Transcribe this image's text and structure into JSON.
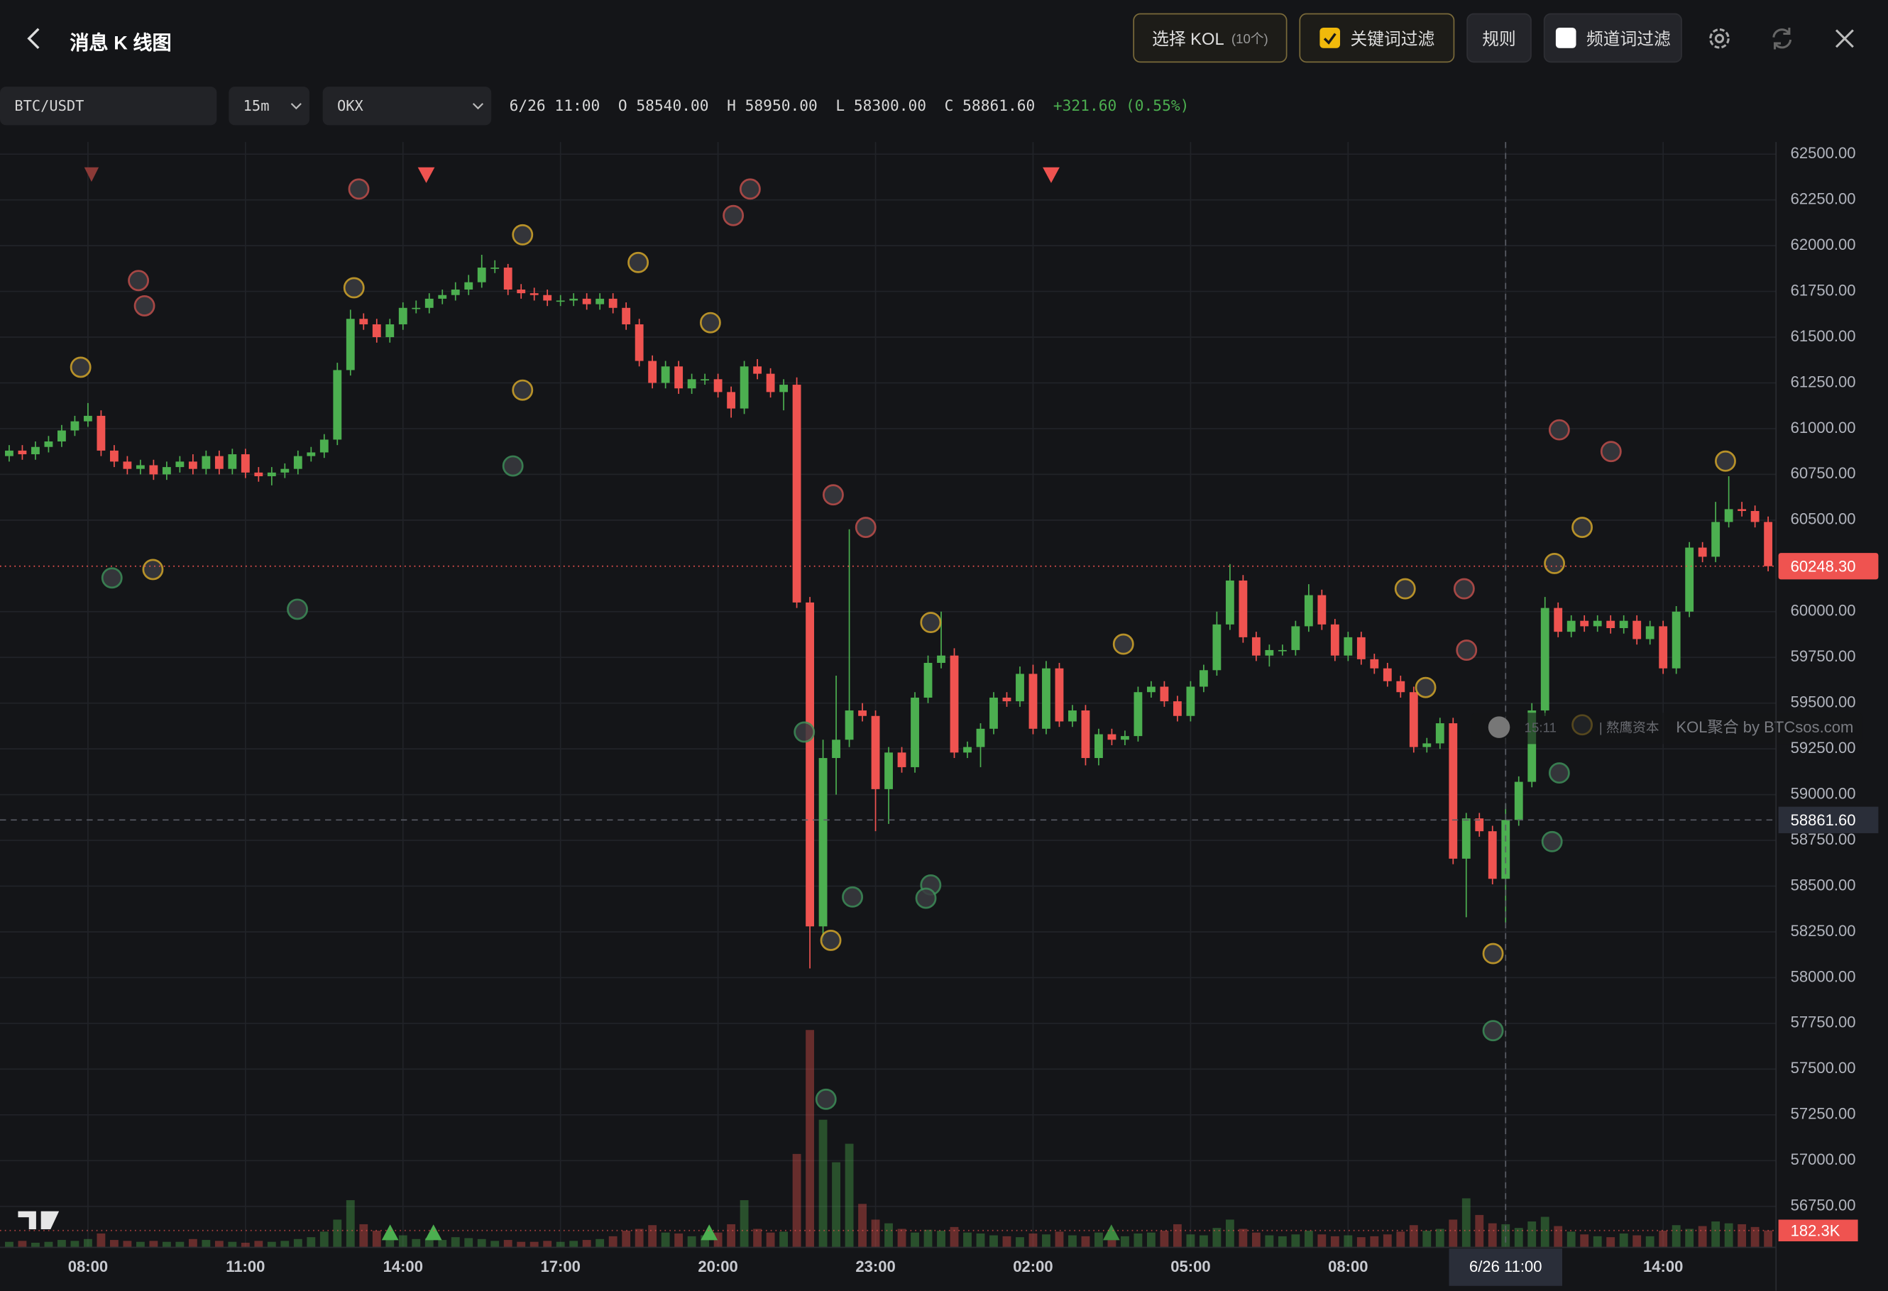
{
  "header": {
    "title": "消息 K 线图",
    "kol_button": "选择 KOL",
    "kol_count": "(10个)",
    "keyword_filter": "关键词过滤",
    "keyword_filter_checked": true,
    "rules": "规则",
    "channel_filter": "频道词过滤",
    "channel_filter_checked": false
  },
  "toolbar": {
    "symbol": "BTC/USDT",
    "interval": "15m",
    "exchange": "OKX",
    "time": "6/26 11:00",
    "open_label": "O",
    "open": "58540.00",
    "high_label": "H",
    "high": "58950.00",
    "low_label": "L",
    "low": "58300.00",
    "close_label": "C",
    "close": "58861.60",
    "change": "+321.60 (0.55%)"
  },
  "watermark": {
    "time": "15:11",
    "source": "| 熬鹰资本",
    "brand": "KOL聚合 by BTCsos.com"
  },
  "chart_data": {
    "type": "candlestick",
    "up_color": "#4caf50",
    "down_color": "#ef5350",
    "grid": true,
    "open": [
      60850,
      60880,
      60860,
      60900,
      60930,
      60990,
      61040,
      61070,
      60880,
      60820,
      60780,
      60800,
      60750,
      60790,
      60820,
      60780,
      60850,
      60780,
      60860,
      60760,
      60740,
      60760,
      60780,
      60850,
      60870,
      60940,
      61320,
      61600,
      61570,
      61500,
      61570,
      61660,
      61660,
      61710,
      61730,
      61760,
      61800,
      61880,
      61880,
      61760,
      61740,
      61730,
      61700,
      61700,
      61710,
      61680,
      61710,
      61660,
      61570,
      61370,
      61250,
      61340,
      61220,
      61270,
      61270,
      61200,
      61110,
      61340,
      61300,
      61200,
      61240,
      60050,
      58280,
      59200,
      59300,
      59460,
      59430,
      59030,
      59230,
      59150,
      59530,
      59720,
      59760,
      59230,
      59260,
      59360,
      59530,
      59510,
      59660,
      59360,
      59690,
      59400,
      59460,
      59200,
      59330,
      59300,
      59320,
      59560,
      59590,
      59510,
      59430,
      59590,
      59680,
      59930,
      60170,
      59860,
      59760,
      59790,
      59790,
      59920,
      60090,
      59930,
      59760,
      59860,
      59740,
      59690,
      59620,
      59560,
      59260,
      59280,
      59390,
      58650,
      58870,
      58800,
      58540,
      58861.6,
      59070,
      59460,
      60020,
      59890,
      59950,
      59920,
      59950,
      59910,
      59950,
      59850,
      59920,
      59690,
      60000,
      60350,
      60300,
      60490,
      60560,
      60550,
      60490
    ],
    "high": [
      60910,
      60910,
      60930,
      60960,
      61020,
      61070,
      61140,
      61100,
      60910,
      60850,
      60830,
      60830,
      60820,
      60850,
      60860,
      60880,
      60880,
      60890,
      60890,
      60790,
      60790,
      60810,
      60880,
      60900,
      60970,
      61360,
      61650,
      61630,
      61600,
      61600,
      61690,
      61700,
      61740,
      61760,
      61800,
      61840,
      61950,
      61920,
      61900,
      61790,
      61770,
      61760,
      61730,
      61740,
      61740,
      61740,
      61740,
      61690,
      61600,
      61400,
      61370,
      61370,
      61300,
      61300,
      61300,
      61230,
      61370,
      61380,
      61330,
      61270,
      61280,
      60080,
      59300,
      59650,
      60450,
      59500,
      59460,
      59260,
      59260,
      59560,
      59760,
      60000,
      59800,
      59290,
      59390,
      59560,
      59560,
      59700,
      59710,
      59730,
      59720,
      59490,
      59490,
      59360,
      59360,
      59350,
      59590,
      59620,
      59620,
      59540,
      59620,
      59710,
      60000,
      60260,
      60200,
      59890,
      59820,
      59820,
      59950,
      60150,
      60120,
      59960,
      59890,
      59890,
      59770,
      59720,
      59650,
      59590,
      59310,
      59420,
      59420,
      58900,
      58900,
      58830,
      58950,
      59100,
      59500,
      60080,
      60050,
      59980,
      59980,
      59980,
      59980,
      59980,
      59980,
      59950,
      59950,
      60030,
      60380,
      60380,
      60600,
      60740,
      60600,
      60580,
      60520
    ],
    "low": [
      60820,
      60830,
      60830,
      60870,
      60900,
      60960,
      61010,
      60850,
      60790,
      60750,
      60750,
      60720,
      60720,
      60760,
      60750,
      60750,
      60750,
      60750,
      60730,
      60710,
      60690,
      60730,
      60750,
      60820,
      60840,
      60910,
      61290,
      61540,
      61470,
      61470,
      61540,
      61630,
      61630,
      61680,
      61700,
      61730,
      61770,
      61850,
      61730,
      61710,
      61700,
      61670,
      61670,
      61670,
      61650,
      61650,
      61630,
      61540,
      61340,
      61220,
      61220,
      61190,
      61190,
      61240,
      61170,
      61060,
      61080,
      61270,
      61170,
      61100,
      60020,
      58050,
      58200,
      59000,
      59260,
      59400,
      58800,
      58840,
      59120,
      59120,
      59500,
      59690,
      59200,
      59200,
      59150,
      59330,
      59480,
      59480,
      59330,
      59330,
      59370,
      59370,
      59160,
      59160,
      59270,
      59270,
      59290,
      59530,
      59480,
      59400,
      59400,
      59560,
      59650,
      59900,
      59830,
      59730,
      59700,
      59760,
      59760,
      59890,
      59900,
      59730,
      59730,
      59710,
      59660,
      59590,
      59530,
      59230,
      59230,
      59250,
      58620,
      58330,
      58770,
      58510,
      58300,
      58830,
      59040,
      59430,
      59860,
      59860,
      59890,
      59890,
      59880,
      59880,
      59820,
      59820,
      59660,
      59660,
      59970,
      60270,
      60270,
      60460,
      60520,
      60460,
      60220
    ],
    "close": [
      60880,
      60860,
      60900,
      60930,
      60990,
      61040,
      61070,
      60880,
      60820,
      60780,
      60800,
      60750,
      60790,
      60820,
      60780,
      60850,
      60780,
      60860,
      60760,
      60740,
      60760,
      60780,
      60850,
      60870,
      60940,
      61320,
      61600,
      61570,
      61500,
      61570,
      61660,
      61660,
      61710,
      61730,
      61760,
      61800,
      61880,
      61880,
      61760,
      61740,
      61730,
      61700,
      61700,
      61710,
      61680,
      61710,
      61660,
      61570,
      61370,
      61250,
      61340,
      61220,
      61270,
      61270,
      61200,
      61110,
      61340,
      61300,
      61200,
      61240,
      60050,
      58280,
      59200,
      59300,
      59460,
      59430,
      59030,
      59230,
      59150,
      59530,
      59720,
      59760,
      59230,
      59260,
      59360,
      59530,
      59510,
      59660,
      59360,
      59690,
      59400,
      59460,
      59200,
      59330,
      59300,
      59320,
      59560,
      59590,
      59510,
      59430,
      59590,
      59680,
      59930,
      60170,
      59860,
      59760,
      59790,
      59790,
      59920,
      60090,
      59930,
      59760,
      59860,
      59740,
      59690,
      59620,
      59560,
      59260,
      59280,
      59390,
      58650,
      58870,
      58800,
      58540,
      58861.6,
      59070,
      59460,
      60020,
      59890,
      59950,
      59920,
      59950,
      59910,
      59950,
      59850,
      59920,
      59690,
      60000,
      60350,
      60300,
      60490,
      60560,
      60550,
      60490,
      60248.3
    ],
    "volume": [
      60,
      70,
      50,
      60,
      80,
      70,
      90,
      150,
      80,
      70,
      60,
      70,
      60,
      60,
      90,
      80,
      70,
      60,
      50,
      70,
      60,
      70,
      90,
      110,
      170,
      300,
      510,
      250,
      180,
      120,
      130,
      90,
      100,
      80,
      110,
      100,
      90,
      70,
      80,
      60,
      60,
      70,
      60,
      70,
      80,
      90,
      120,
      180,
      200,
      240,
      160,
      150,
      120,
      130,
      160,
      250,
      510,
      200,
      160,
      170,
      1010,
      2350,
      1380,
      920,
      1120,
      470,
      300,
      260,
      200,
      160,
      190,
      180,
      220,
      160,
      150,
      130,
      120,
      110,
      150,
      140,
      170,
      130,
      120,
      160,
      110,
      120,
      150,
      160,
      180,
      250,
      140,
      130,
      210,
      300,
      200,
      160,
      130,
      120,
      140,
      180,
      140,
      120,
      130,
      110,
      120,
      140,
      170,
      240,
      180,
      200,
      300,
      530,
      350,
      260,
      250,
      210,
      280,
      330,
      230,
      170,
      140,
      120,
      110,
      150,
      130,
      120,
      180,
      240,
      200,
      230,
      280,
      260,
      250,
      220,
      182.3
    ],
    "xlim": [
      -0.7,
      134.6
    ],
    "xticks": [
      {
        "value": 6,
        "label": "08:00"
      },
      {
        "value": 18,
        "label": "11:00"
      },
      {
        "value": 30,
        "label": "14:00"
      },
      {
        "value": 42,
        "label": "17:00"
      },
      {
        "value": 54,
        "label": "20:00"
      },
      {
        "value": 66,
        "label": "23:00"
      },
      {
        "value": 78,
        "label": "02:00"
      },
      {
        "value": 90,
        "label": "05:00"
      },
      {
        "value": 102,
        "label": "08:00"
      },
      {
        "value": 114,
        "label": "6/26 11:00"
      },
      {
        "value": 126,
        "label": "14:00"
      }
    ],
    "ylim": [
      56526,
      62566
    ],
    "yticks": [
      {
        "value": 62500,
        "label": "62500.00"
      },
      {
        "value": 62250,
        "label": "62250.00"
      },
      {
        "value": 62000,
        "label": "62000.00"
      },
      {
        "value": 61750,
        "label": "61750.00"
      },
      {
        "value": 61500,
        "label": "61500.00"
      },
      {
        "value": 61250,
        "label": "61250.00"
      },
      {
        "value": 61000,
        "label": "61000.00"
      },
      {
        "value": 60750,
        "label": "60750.00"
      },
      {
        "value": 60500,
        "label": "60500.00"
      },
      {
        "value": 60000,
        "label": "60000.00"
      },
      {
        "value": 59750,
        "label": "59750.00"
      },
      {
        "value": 59500,
        "label": "59500.00"
      },
      {
        "value": 59250,
        "label": "59250.00"
      },
      {
        "value": 59000,
        "label": "59000.00"
      },
      {
        "value": 58750,
        "label": "58750.00"
      },
      {
        "value": 58500,
        "label": "58500.00"
      },
      {
        "value": 58250,
        "label": "58250.00"
      },
      {
        "value": 58000,
        "label": "58000.00"
      },
      {
        "value": 57750,
        "label": "57750.00"
      },
      {
        "value": 57500,
        "label": "57500.00"
      },
      {
        "value": 57250,
        "label": "57250.00"
      },
      {
        "value": 57000,
        "label": "57000.00"
      },
      {
        "value": 56750,
        "label": "56750.00"
      }
    ],
    "volume_ylim": [
      0,
      11950
    ],
    "last_price": {
      "value": 60248.3,
      "label": "60248.30"
    },
    "crosshair": {
      "value": 58861.6,
      "label": "58861.60"
    },
    "volume_label": {
      "value": 182.3,
      "label": "182.3K"
    }
  }
}
